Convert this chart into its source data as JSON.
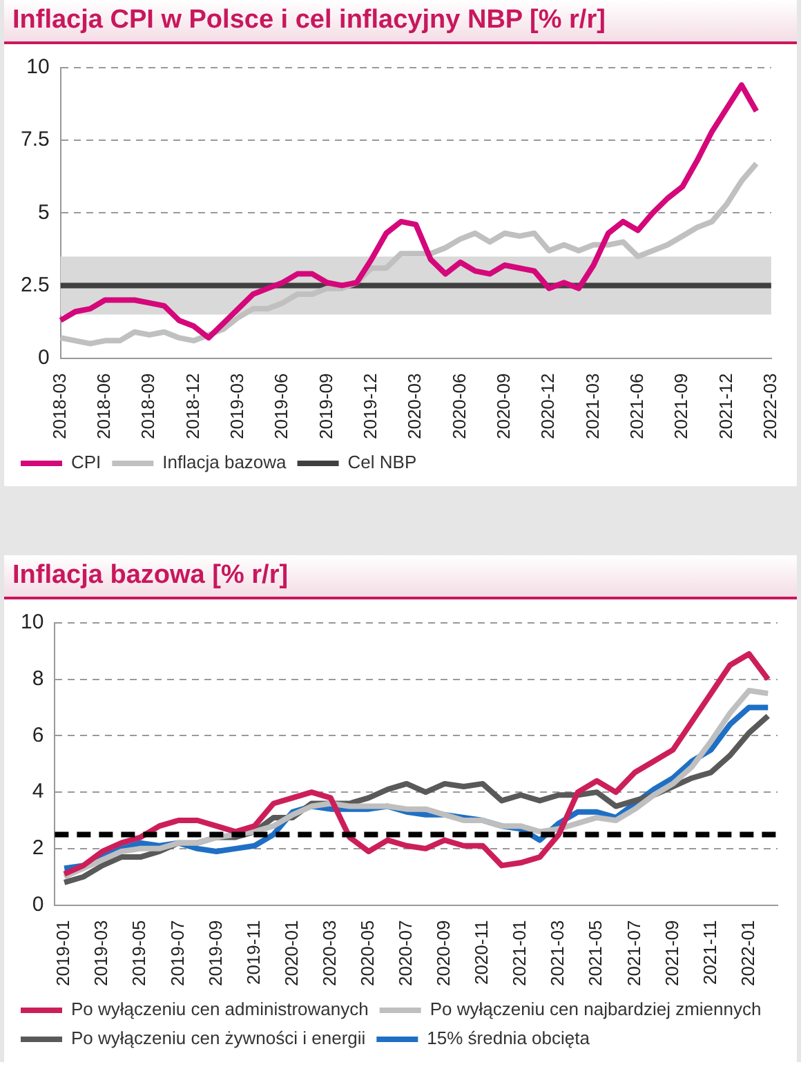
{
  "chart_data": [
    {
      "type": "line",
      "title": "Inflacja CPI w Polsce i cel inflacyjny NBP [% r/r]",
      "categories": [
        "2018-03",
        null,
        null,
        "2018-06",
        null,
        null,
        "2018-09",
        null,
        null,
        "2018-12",
        null,
        null,
        "2019-03",
        null,
        null,
        "2019-06",
        null,
        null,
        "2019-09",
        null,
        null,
        "2019-12",
        null,
        null,
        "2020-03",
        null,
        null,
        "2020-06",
        null,
        null,
        "2020-09",
        null,
        null,
        "2020-12",
        null,
        null,
        "2021-03",
        null,
        null,
        "2021-06",
        null,
        null,
        "2021-09",
        null,
        null,
        "2021-12",
        null,
        null,
        "2022-03"
      ],
      "series": [
        {
          "name": "CPI",
          "color": "#d4087a",
          "values": [
            1.3,
            1.6,
            1.7,
            2.0,
            2.0,
            2.0,
            1.9,
            1.8,
            1.3,
            1.1,
            0.7,
            1.2,
            1.7,
            2.2,
            2.4,
            2.6,
            2.9,
            2.9,
            2.6,
            2.5,
            2.6,
            3.4,
            4.3,
            4.7,
            4.6,
            3.4,
            2.9,
            3.3,
            3.0,
            2.9,
            3.2,
            3.1,
            3.0,
            2.4,
            2.6,
            2.4,
            3.2,
            4.3,
            4.7,
            4.4,
            5.0,
            5.5,
            5.9,
            6.8,
            7.8,
            8.6,
            9.4,
            8.5,
            null
          ]
        },
        {
          "name": "Inflacja bazowa",
          "color": "#c0c0c0",
          "values": [
            0.7,
            0.6,
            0.5,
            0.6,
            0.6,
            0.9,
            0.8,
            0.9,
            0.7,
            0.6,
            0.8,
            1.0,
            1.4,
            1.7,
            1.7,
            1.9,
            2.2,
            2.2,
            2.4,
            2.4,
            2.6,
            3.1,
            3.1,
            3.6,
            3.6,
            3.6,
            3.8,
            4.1,
            4.3,
            4.0,
            4.3,
            4.2,
            4.3,
            3.7,
            3.9,
            3.7,
            3.9,
            3.9,
            4.0,
            3.5,
            3.7,
            3.9,
            4.2,
            4.5,
            4.7,
            5.3,
            6.1,
            6.7,
            null
          ]
        },
        {
          "name": "Cel NBP",
          "color": "#404040",
          "values": [
            2.5,
            2.5,
            2.5,
            2.5,
            2.5,
            2.5,
            2.5,
            2.5,
            2.5,
            2.5,
            2.5,
            2.5,
            2.5,
            2.5,
            2.5,
            2.5,
            2.5,
            2.5,
            2.5,
            2.5,
            2.5,
            2.5,
            2.5,
            2.5,
            2.5,
            2.5,
            2.5,
            2.5,
            2.5,
            2.5,
            2.5,
            2.5,
            2.5,
            2.5,
            2.5,
            2.5,
            2.5,
            2.5,
            2.5,
            2.5,
            2.5,
            2.5,
            2.5,
            2.5,
            2.5,
            2.5,
            2.5,
            2.5,
            2.5
          ]
        }
      ],
      "bands": [
        {
          "axis": "y",
          "from": 1.5,
          "to": 3.5,
          "color": "#d9d9d9"
        }
      ],
      "ylim": [
        0,
        10
      ],
      "yticks": [
        0,
        2.5,
        5,
        7.5,
        10
      ],
      "grid": "y",
      "legend": "bottom",
      "marker": "none",
      "line_style": "solid"
    },
    {
      "type": "line",
      "title": "Inflacja bazowa [% r/r]",
      "categories": [
        "2019-01",
        null,
        "2019-03",
        null,
        "2019-05",
        null,
        "2019-07",
        null,
        "2019-09",
        null,
        "2019-11",
        null,
        "2020-01",
        null,
        "2020-03",
        null,
        "2020-05",
        null,
        "2020-07",
        null,
        "2020-09",
        null,
        "2020-11",
        null,
        "2021-01",
        null,
        "2021-03",
        null,
        "2021-05",
        null,
        "2021-07",
        null,
        "2021-09",
        null,
        "2021-11",
        null,
        "2022-01",
        null
      ],
      "series": [
        {
          "name": "Po wyłączeniu cen administrowanych",
          "color": "#cc1f5a",
          "values": [
            1.1,
            1.4,
            1.9,
            2.2,
            2.4,
            2.8,
            3.0,
            3.0,
            2.8,
            2.6,
            2.8,
            3.6,
            3.8,
            4.0,
            3.8,
            2.4,
            1.9,
            2.3,
            2.1,
            2.0,
            2.3,
            2.1,
            2.1,
            1.4,
            1.5,
            1.7,
            2.5,
            4.0,
            4.4,
            4.0,
            4.7,
            5.1,
            5.5,
            6.5,
            7.5,
            8.5,
            8.9,
            8.0
          ]
        },
        {
          "name": "Po wyłączeniu cen najbardziej zmiennych",
          "color": "#bfbfbf",
          "values": [
            1.0,
            1.3,
            1.6,
            1.9,
            2.0,
            2.0,
            2.2,
            2.2,
            2.4,
            2.5,
            2.6,
            2.8,
            3.2,
            3.5,
            3.6,
            3.5,
            3.5,
            3.5,
            3.4,
            3.4,
            3.2,
            3.0,
            3.0,
            2.8,
            2.8,
            2.6,
            2.7,
            2.9,
            3.1,
            3.0,
            3.4,
            3.9,
            4.3,
            4.9,
            5.8,
            6.8,
            7.6,
            7.5
          ]
        },
        {
          "name": "Po wyłączeniu cen żywności i energii",
          "color": "#595959",
          "values": [
            0.8,
            1.0,
            1.4,
            1.7,
            1.7,
            1.9,
            2.2,
            2.2,
            2.4,
            2.4,
            2.6,
            3.1,
            3.1,
            3.6,
            3.6,
            3.6,
            3.8,
            4.1,
            4.3,
            4.0,
            4.3,
            4.2,
            4.3,
            3.7,
            3.9,
            3.7,
            3.9,
            3.9,
            4.0,
            3.5,
            3.7,
            3.9,
            4.2,
            4.5,
            4.7,
            5.3,
            6.1,
            6.7
          ]
        },
        {
          "name": "15% średnia obcięta",
          "color": "#1f6fc5",
          "values": [
            1.3,
            1.4,
            1.7,
            2.0,
            2.2,
            2.1,
            2.2,
            2.0,
            1.9,
            2.0,
            2.1,
            2.5,
            3.3,
            3.5,
            3.4,
            3.4,
            3.4,
            3.5,
            3.3,
            3.2,
            3.2,
            3.1,
            3.0,
            2.8,
            2.7,
            2.3,
            2.9,
            3.3,
            3.3,
            3.1,
            3.6,
            4.1,
            4.5,
            5.1,
            5.5,
            6.4,
            7.0,
            7.0
          ]
        }
      ],
      "ref_lines": [
        {
          "axis": "y",
          "value": 2.5,
          "color": "#000000",
          "line_style": "dashed"
        }
      ],
      "ylim": [
        0,
        10
      ],
      "yticks": [
        0,
        2,
        4,
        6,
        8,
        10
      ],
      "grid": "y",
      "legend": "bottom",
      "marker": "none",
      "line_style": "solid"
    }
  ]
}
